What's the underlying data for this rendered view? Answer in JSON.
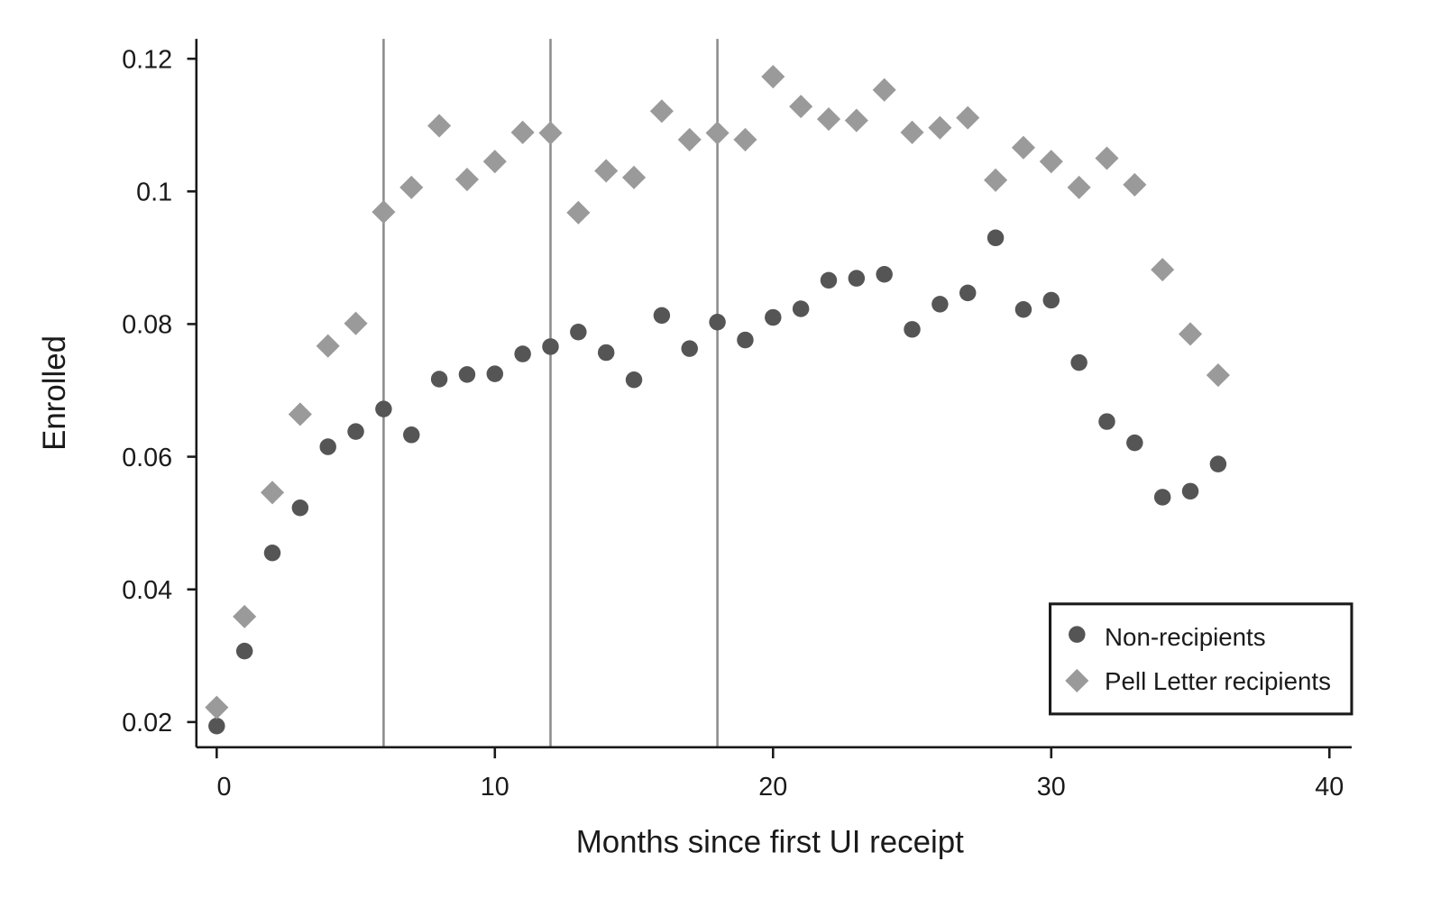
{
  "chart_data": {
    "type": "scatter",
    "title": "",
    "xlabel": "Months since first UI receipt",
    "ylabel": "Enrolled",
    "xlim": [
      -0.73,
      40.8
    ],
    "ylim": [
      0.0162,
      0.123
    ],
    "xticks": [
      0,
      10,
      20,
      30,
      40
    ],
    "xtick_labels": [
      "0",
      "10",
      "20",
      "30",
      "40"
    ],
    "yticks": [
      0.02,
      0.04,
      0.06,
      0.08,
      0.1,
      0.12
    ],
    "ytick_labels": [
      "0.02",
      "0.04",
      "0.06",
      "0.08",
      "0.1",
      "0.12"
    ],
    "grid": false,
    "reference_lines_x": [
      6,
      12,
      18
    ],
    "legend": {
      "placement": "bottom-right"
    },
    "series": [
      {
        "name": "Non-recipients",
        "marker": "circle",
        "color": "#555555",
        "x": [
          0,
          1,
          2,
          3,
          4,
          5,
          6,
          7,
          8,
          9,
          10,
          11,
          12,
          13,
          14,
          15,
          16,
          17,
          18,
          19,
          20,
          21,
          22,
          23,
          24,
          25,
          26,
          27,
          28,
          29,
          30,
          31,
          32,
          33,
          34,
          35,
          36
        ],
        "y": [
          0.0194,
          0.0307,
          0.0455,
          0.0523,
          0.0615,
          0.0638,
          0.0672,
          0.0633,
          0.0717,
          0.0724,
          0.0725,
          0.0755,
          0.0766,
          0.0788,
          0.0757,
          0.0716,
          0.0813,
          0.0763,
          0.0803,
          0.0776,
          0.081,
          0.0823,
          0.0866,
          0.0869,
          0.0875,
          0.0792,
          0.083,
          0.0847,
          0.093,
          0.0822,
          0.0836,
          0.0742,
          0.0653,
          0.0621,
          0.0539,
          0.0548,
          0.0589
        ]
      },
      {
        "name": "Pell Letter recipients",
        "marker": "diamond",
        "color": "#9a9a9a",
        "x": [
          0,
          1,
          2,
          3,
          4,
          5,
          6,
          7,
          8,
          9,
          10,
          11,
          12,
          13,
          14,
          15,
          16,
          17,
          18,
          19,
          20,
          21,
          22,
          23,
          24,
          25,
          26,
          27,
          28,
          29,
          30,
          31,
          32,
          33,
          34,
          35,
          36
        ],
        "y": [
          0.0222,
          0.0359,
          0.0546,
          0.0664,
          0.0767,
          0.0801,
          0.0969,
          0.1006,
          0.1099,
          0.1018,
          0.1045,
          0.1089,
          0.1088,
          0.0968,
          0.1031,
          0.1021,
          0.1121,
          0.1078,
          0.1088,
          0.1078,
          0.1173,
          0.1128,
          0.1109,
          0.1107,
          0.1153,
          0.1089,
          0.1096,
          0.1111,
          0.1017,
          0.1066,
          0.1045,
          0.1006,
          0.105,
          0.101,
          0.0882,
          0.0785,
          0.0723
        ]
      }
    ]
  }
}
